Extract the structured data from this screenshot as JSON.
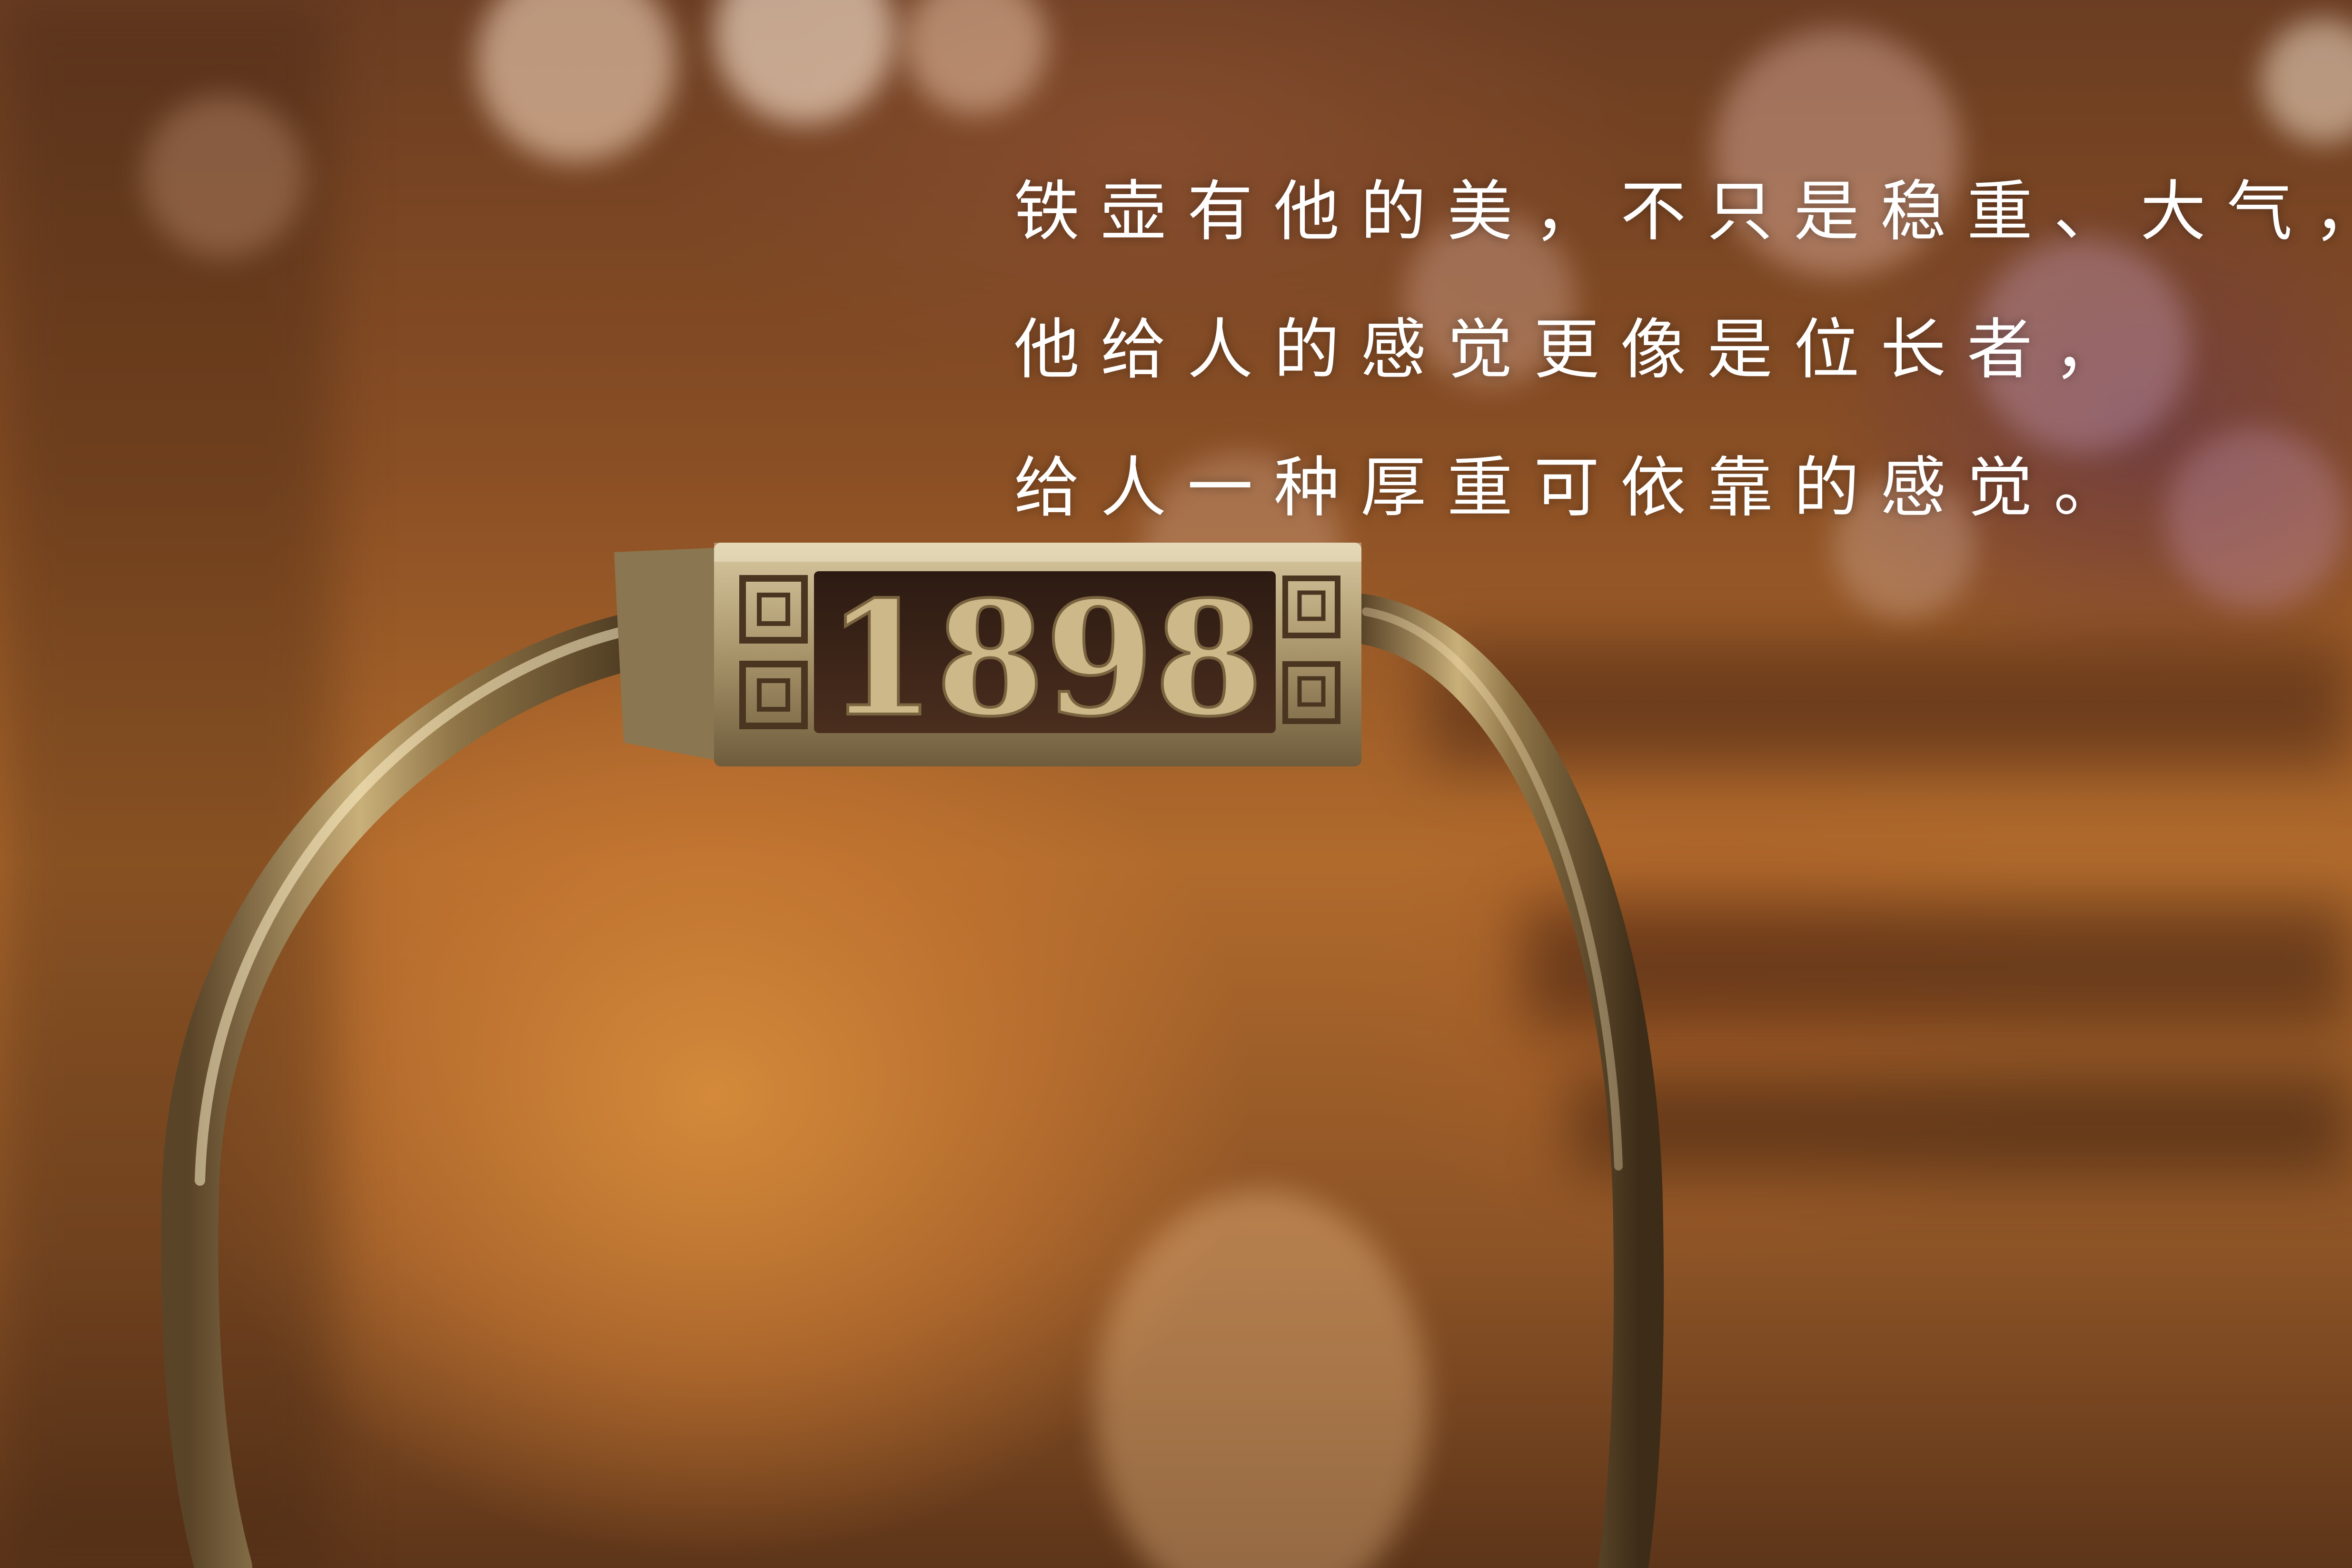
{
  "image": {
    "description_elements": [
      "brass-handle",
      "number-plate",
      "poem"
    ]
  },
  "plate": {
    "number": "1898"
  },
  "poem": {
    "lines": [
      "铁壶有他的美，不只是稳重、大气，",
      "他给人的感觉更像是位长者，",
      "给人一种厚重可依靠的感觉。"
    ]
  },
  "colors": {
    "brass": "#b8a070",
    "plate_bg": "#3a2418",
    "text": "#ffffff"
  }
}
